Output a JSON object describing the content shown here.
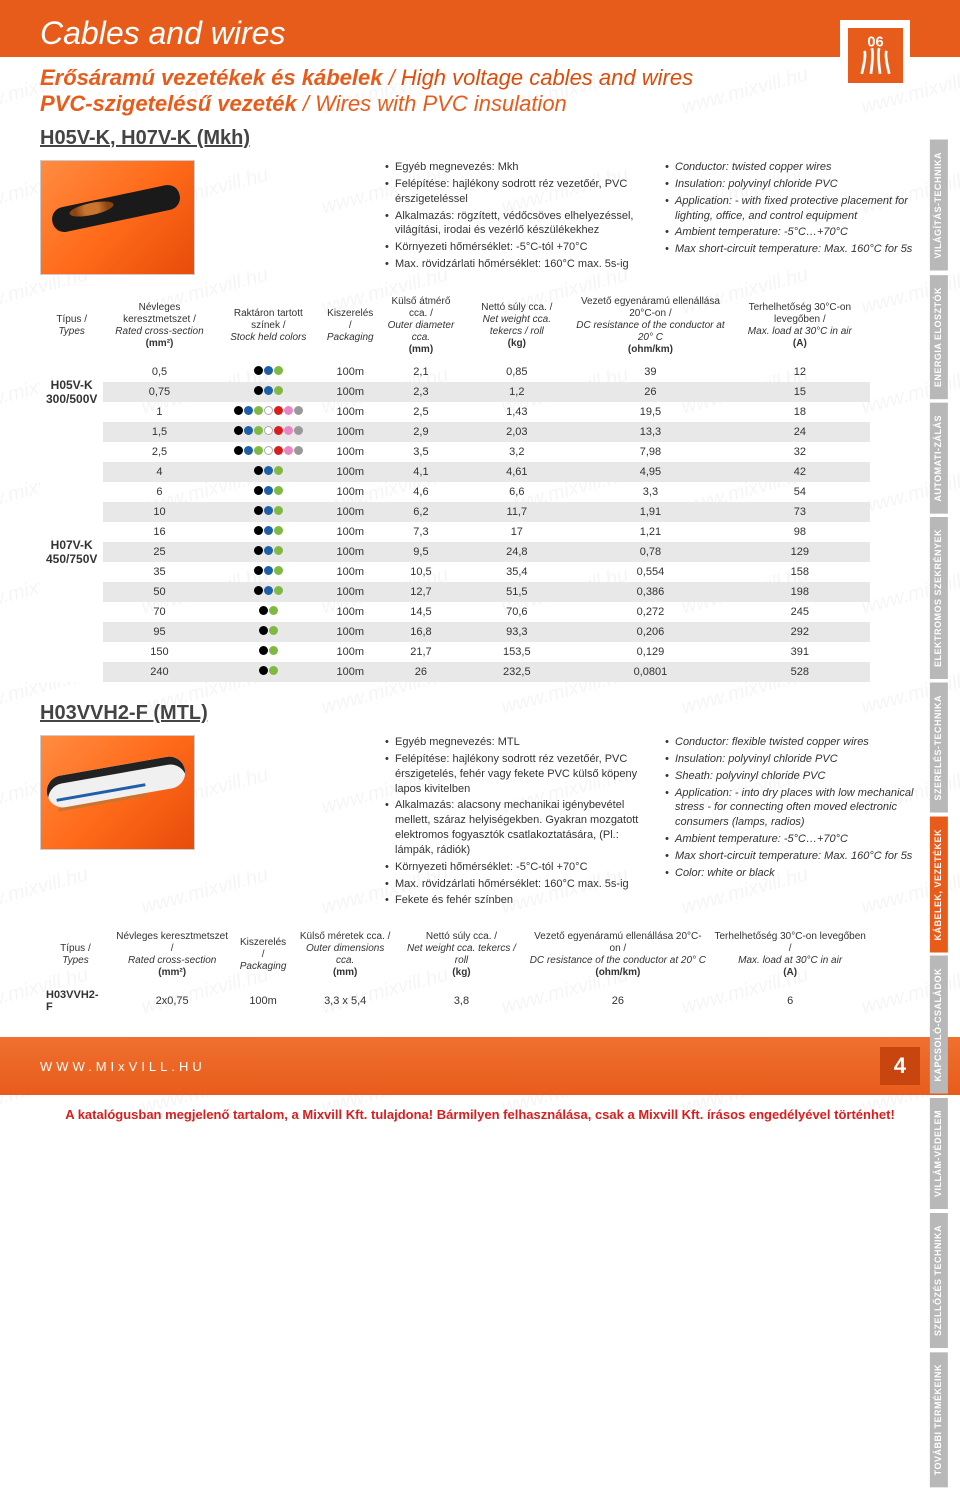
{
  "header": {
    "title": "Cables and wires",
    "icon_label": "06"
  },
  "subtitle1": {
    "bold": "Erősáramú vezetékek és kábelek",
    "italic": "High voltage cables and wires"
  },
  "subtitle2": {
    "bold": "PVC-szigetelésű vezeték",
    "italic": "Wires with PVC insulation"
  },
  "product1": {
    "code": "H05V-K, H07V-K (Mkh)",
    "specs_hu": [
      "Egyéb megnevezés: Mkh",
      "Felépítése: hajlékony sodrott réz vezetőér, PVC érszigeteléssel",
      "Alkalmazás: rögzített, védőcsöves elhelyezéssel, világítási, irodai és vezérlő készülékekhez",
      "Környezeti hőmérséklet: -5°C-tól +70°C",
      "Max. rövidzárlati hőmérséklet: 160°C max. 5s-ig"
    ],
    "specs_en": [
      "Conductor: twisted copper wires",
      "Insulation: polyvinyl chloride PVC",
      "Application: - with fixed protective placement for lighting, office, and control equipment",
      "Ambient temperature: -5°C…+70°C",
      "Max short-circuit temperature: Max. 160°C for 5s"
    ]
  },
  "table1": {
    "headers": [
      {
        "hu": "Típus /",
        "en": "Types",
        "unit": ""
      },
      {
        "hu": "Névleges keresztmetszet /",
        "en": "Rated cross-section",
        "unit": "(mm²)"
      },
      {
        "hu": "Raktáron tartott színek /",
        "en": "Stock held colors",
        "unit": ""
      },
      {
        "hu": "Kiszerelés /",
        "en": "Packaging",
        "unit": ""
      },
      {
        "hu": "Külső átmérő cca. /",
        "en": "Outer diameter cca.",
        "unit": "(mm)"
      },
      {
        "hu": "Nettó súly cca. /",
        "en": "Net weight cca. tekercs / roll",
        "unit": "(kg)"
      },
      {
        "hu": "Vezető egyenáramú ellenállása 20°C-on /",
        "en": "DC resistance of the conductor at 20° C",
        "unit": "(ohm/km)"
      },
      {
        "hu": "Terhelhetőség 30°C-on levegőben /",
        "en": "Max. load at 30°C in air",
        "unit": "(A)"
      }
    ],
    "groups": [
      {
        "type": "H05V-K",
        "volt": "300/500V",
        "span": 3
      },
      {
        "type": "H07V-K",
        "volt": "450/750V",
        "span": 13
      }
    ],
    "rows": [
      {
        "cs": "0,5",
        "colors": [
          "#000",
          "#1e5fa8",
          "#7fb942"
        ],
        "pkg": "100m",
        "dia": "2,1",
        "wt": "0,85",
        "res": "39",
        "load": "12",
        "odd": 0
      },
      {
        "cs": "0,75",
        "colors": [
          "#000",
          "#1e5fa8",
          "#7fb942"
        ],
        "pkg": "100m",
        "dia": "2,3",
        "wt": "1,2",
        "res": "26",
        "load": "15",
        "odd": 1
      },
      {
        "cs": "1",
        "colors": [
          "#000",
          "#1e5fa8",
          "#7fb942",
          "#fff",
          "#d91e1e",
          "#e985c4",
          "#999"
        ],
        "pkg": "100m",
        "dia": "2,5",
        "wt": "1,43",
        "res": "19,5",
        "load": "18",
        "odd": 0
      },
      {
        "cs": "1,5",
        "colors": [
          "#000",
          "#1e5fa8",
          "#7fb942",
          "#fff",
          "#d91e1e",
          "#e985c4",
          "#999"
        ],
        "pkg": "100m",
        "dia": "2,9",
        "wt": "2,03",
        "res": "13,3",
        "load": "24",
        "odd": 1
      },
      {
        "cs": "2,5",
        "colors": [
          "#000",
          "#1e5fa8",
          "#7fb942",
          "#fff",
          "#d91e1e",
          "#e985c4",
          "#999"
        ],
        "pkg": "100m",
        "dia": "3,5",
        "wt": "3,2",
        "res": "7,98",
        "load": "32",
        "odd": 0
      },
      {
        "cs": "4",
        "colors": [
          "#000",
          "#1e5fa8",
          "#7fb942"
        ],
        "pkg": "100m",
        "dia": "4,1",
        "wt": "4,61",
        "res": "4,95",
        "load": "42",
        "odd": 1
      },
      {
        "cs": "6",
        "colors": [
          "#000",
          "#1e5fa8",
          "#7fb942"
        ],
        "pkg": "100m",
        "dia": "4,6",
        "wt": "6,6",
        "res": "3,3",
        "load": "54",
        "odd": 0
      },
      {
        "cs": "10",
        "colors": [
          "#000",
          "#1e5fa8",
          "#7fb942"
        ],
        "pkg": "100m",
        "dia": "6,2",
        "wt": "11,7",
        "res": "1,91",
        "load": "73",
        "odd": 1
      },
      {
        "cs": "16",
        "colors": [
          "#000",
          "#1e5fa8",
          "#7fb942"
        ],
        "pkg": "100m",
        "dia": "7,3",
        "wt": "17",
        "res": "1,21",
        "load": "98",
        "odd": 0
      },
      {
        "cs": "25",
        "colors": [
          "#000",
          "#1e5fa8",
          "#7fb942"
        ],
        "pkg": "100m",
        "dia": "9,5",
        "wt": "24,8",
        "res": "0,78",
        "load": "129",
        "odd": 1
      },
      {
        "cs": "35",
        "colors": [
          "#000",
          "#1e5fa8",
          "#7fb942"
        ],
        "pkg": "100m",
        "dia": "10,5",
        "wt": "35,4",
        "res": "0,554",
        "load": "158",
        "odd": 0
      },
      {
        "cs": "50",
        "colors": [
          "#000",
          "#1e5fa8",
          "#7fb942"
        ],
        "pkg": "100m",
        "dia": "12,7",
        "wt": "51,5",
        "res": "0,386",
        "load": "198",
        "odd": 1
      },
      {
        "cs": "70",
        "colors": [
          "#000",
          "#7fb942"
        ],
        "pkg": "100m",
        "dia": "14,5",
        "wt": "70,6",
        "res": "0,272",
        "load": "245",
        "odd": 0
      },
      {
        "cs": "95",
        "colors": [
          "#000",
          "#7fb942"
        ],
        "pkg": "100m",
        "dia": "16,8",
        "wt": "93,3",
        "res": "0,206",
        "load": "292",
        "odd": 1
      },
      {
        "cs": "150",
        "colors": [
          "#000",
          "#7fb942"
        ],
        "pkg": "100m",
        "dia": "21,7",
        "wt": "153,5",
        "res": "0,129",
        "load": "391",
        "odd": 0
      },
      {
        "cs": "240",
        "colors": [
          "#000",
          "#7fb942"
        ],
        "pkg": "100m",
        "dia": "26",
        "wt": "232,5",
        "res": "0,0801",
        "load": "528",
        "odd": 1
      }
    ]
  },
  "product2": {
    "code": "H03VVH2-F (MTL)",
    "specs_hu": [
      "Egyéb megnevezés: MTL",
      "Felépítése: hajlékony sodrott réz vezetőér, PVC érszigetelés, fehér vagy fekete PVC külső köpeny lapos kivitelben",
      "Alkalmazás: alacsony mechanikai igénybevétel mellett, száraz helyiségekben. Gyakran mozgatott elektromos fogyasztók csatlakoztatására, (Pl.: lámpák, rádiók)",
      "Környezeti hőmérséklet: -5°C-tól +70°C",
      "Max. rövidzárlati hőmérséklet: 160°C max. 5s-ig",
      "Fekete és fehér színben"
    ],
    "specs_en": [
      "Conductor: flexible twisted copper wires",
      "Insulation: polyvinyl chloride PVC",
      "Sheath: polyvinyl chloride PVC",
      "Application: - into dry places with low mechanical stress - for connecting often moved electronic consumers (lamps, radios)",
      "Ambient temperature: -5°C…+70°C",
      "Max short-circuit temperature: Max. 160°C for 5s",
      "Color: white or black"
    ]
  },
  "table2": {
    "headers": [
      {
        "hu": "Típus /",
        "en": "Types",
        "unit": ""
      },
      {
        "hu": "Névleges keresztmetszet /",
        "en": "Rated cross-section",
        "unit": "(mm²)"
      },
      {
        "hu": "Kiszerelés /",
        "en": "Packaging",
        "unit": ""
      },
      {
        "hu": "Külső méretek cca. /",
        "en": "Outer dimensions cca.",
        "unit": "(mm)"
      },
      {
        "hu": "Nettó súly cca. /",
        "en": "Net weight cca. tekercs / roll",
        "unit": "(kg)"
      },
      {
        "hu": "Vezető egyenáramú ellenállása 20°C-on /",
        "en": "DC resistance of the conductor at 20° C",
        "unit": "(ohm/km)"
      },
      {
        "hu": "Terhelhetőség 30°C-on levegőben /",
        "en": "Max. load at 30°C in air",
        "unit": "(A)"
      }
    ],
    "row": {
      "type": "H03VVH2-F",
      "cs": "2x0,75",
      "pkg": "100m",
      "dim": "3,3 x 5,4",
      "wt": "3,8",
      "res": "26",
      "load": "6"
    }
  },
  "side_tabs": [
    {
      "label": "VILÁGÍTÁS-TECHNIKA",
      "class": "grey"
    },
    {
      "label": "ENERGIA ELOSZTÓK",
      "class": "grey"
    },
    {
      "label": "AUTOMATI-ZÁLÁS",
      "class": "grey"
    },
    {
      "label": "ELEKTROMOS SZEKRÉNYEK",
      "class": "grey"
    },
    {
      "label": "SZERELÉS-TECHNIKA",
      "class": "grey"
    },
    {
      "label": "KÁBELEK, VEZETÉKEK",
      "class": "orange"
    },
    {
      "label": "KAPCSOLÓ-CSALÁDOK",
      "class": "grey"
    },
    {
      "label": "VILLÁM-VÉDELEM",
      "class": "grey"
    },
    {
      "label": "SZELLŐZÉS TECHNIKA",
      "class": "grey"
    },
    {
      "label": "TOVÁBBI TERMÉKEINK",
      "class": "grey"
    }
  ],
  "footer": {
    "url": "WWW.MIxVILL.HU",
    "page": "4"
  },
  "disclaimer": "A katalógusban megjelenő tartalom, a Mixvill Kft. tulajdona! Bármilyen felhasználása, csak a Mixvill Kft. írásos engedélyével történhet!",
  "watermark_text": "www.mixvill.hu"
}
